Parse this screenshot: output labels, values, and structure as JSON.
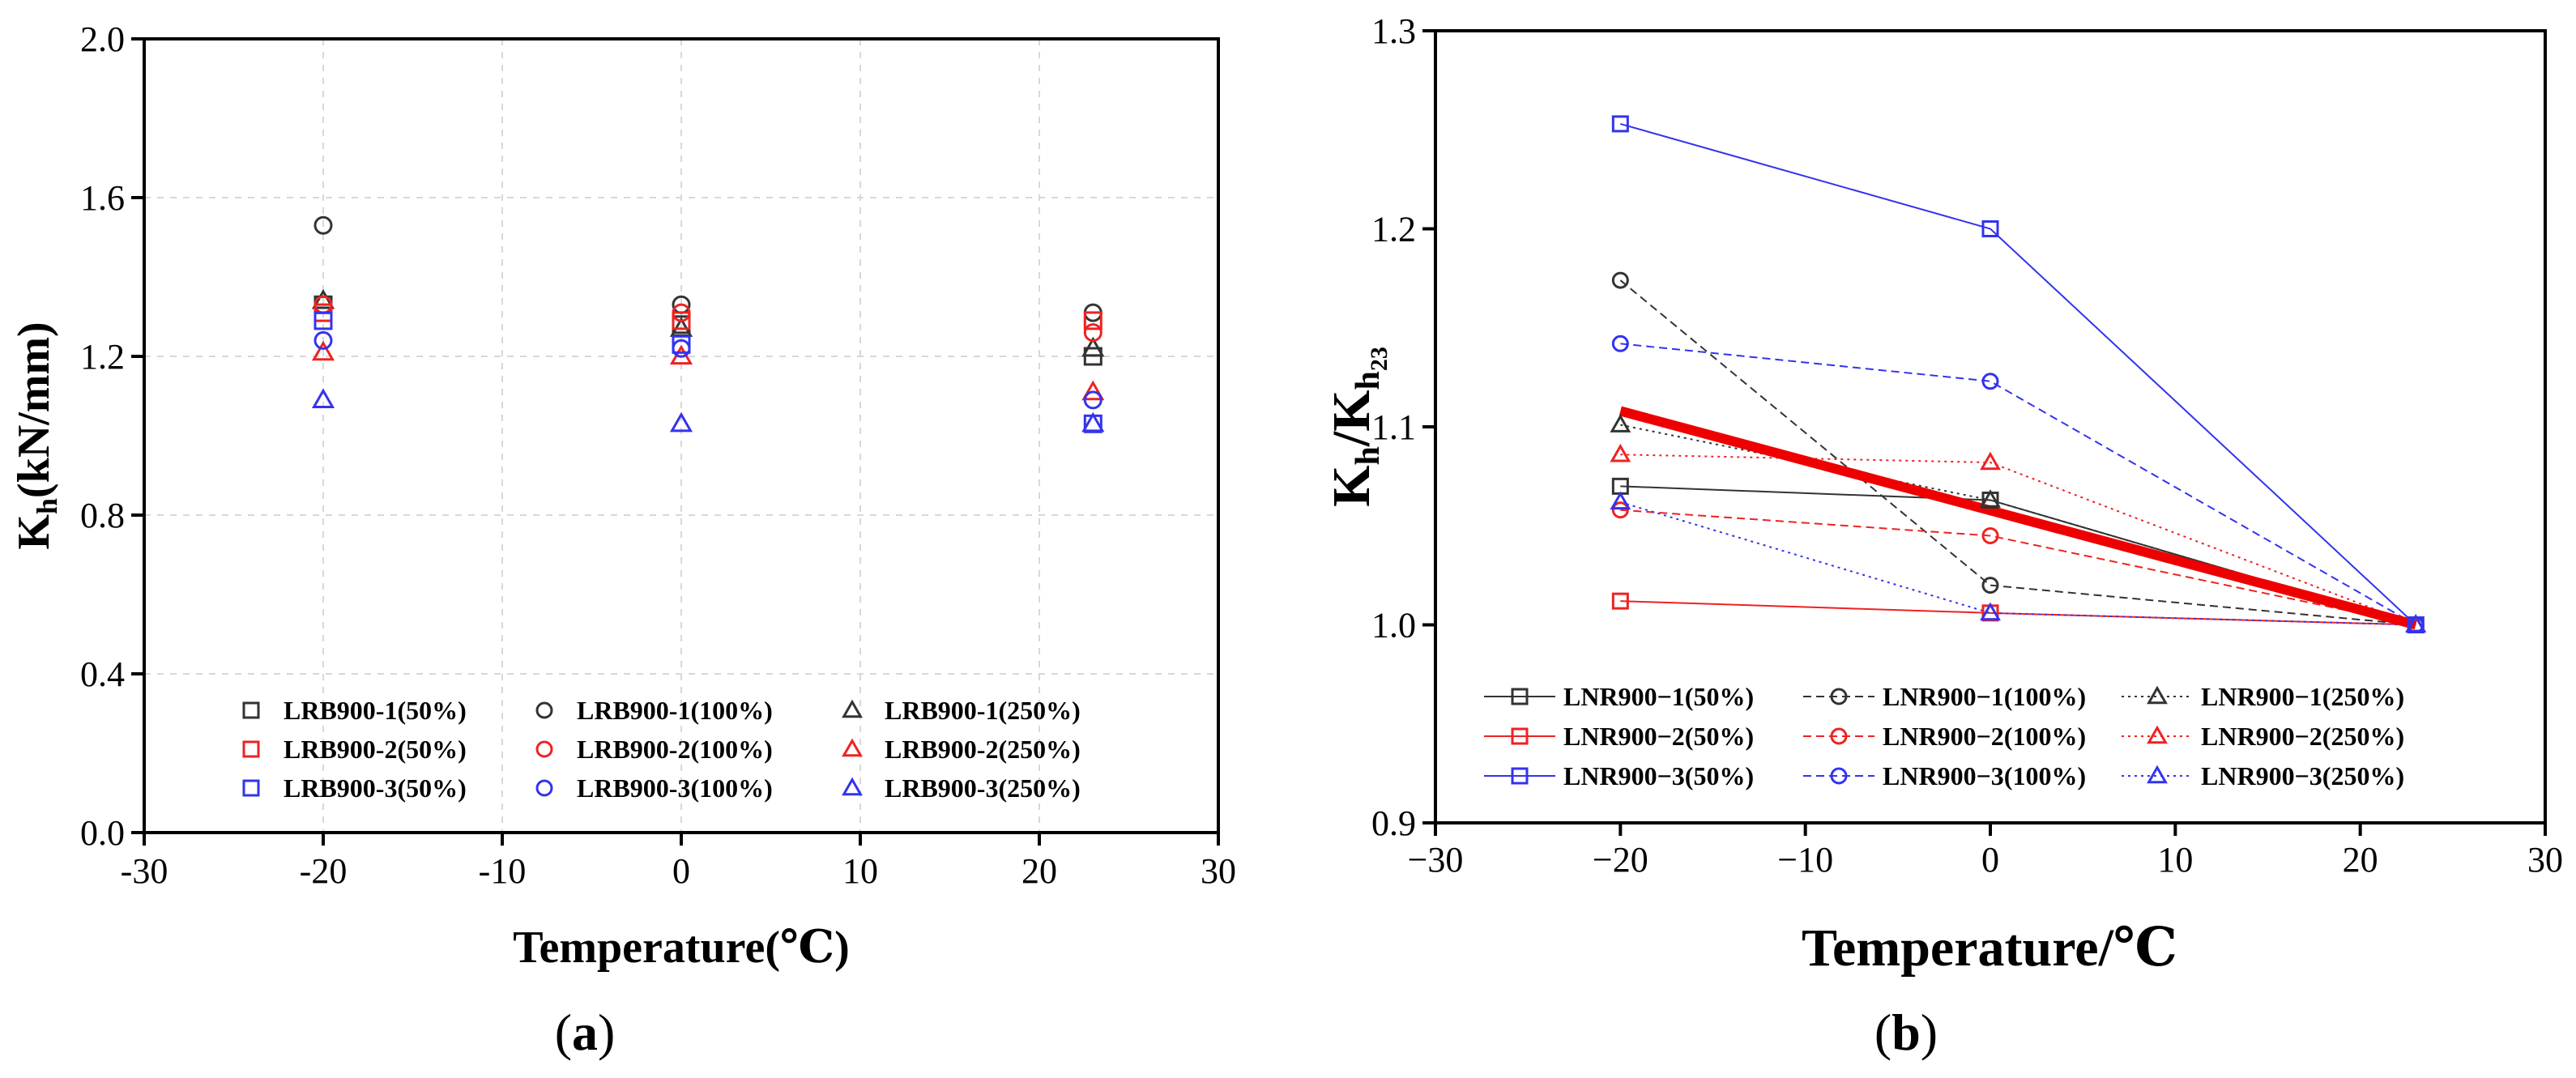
{
  "colors": {
    "black": "#333333",
    "red": "#ee2222",
    "blue": "#3333ee",
    "trend": "#ee0000",
    "grid": "#d8d8d8"
  },
  "panels": {
    "a": {
      "label_open": "(",
      "label_letter": "a",
      "label_close": ")"
    },
    "b": {
      "label_open": "(",
      "label_letter": "b",
      "label_close": ")"
    }
  },
  "chart_data": [
    {
      "type": "scatter",
      "id": "a",
      "xlabel": "Temperature(℃)",
      "ylabel_main": "K",
      "ylabel_sub": "h",
      "ylabel_rest": "(kN/mm)",
      "xlim": [
        -30,
        30
      ],
      "ylim": [
        0.0,
        2.0
      ],
      "xticks": [
        -30,
        -20,
        -10,
        0,
        10,
        20,
        30
      ],
      "xtick_labels": [
        "-30",
        "-20",
        "-10",
        "0",
        "10",
        "20",
        "30"
      ],
      "yticks": [
        0.0,
        0.4,
        0.8,
        1.2,
        1.6,
        2.0
      ],
      "ytick_labels": [
        "0.0",
        "0.4",
        "0.8",
        "1.2",
        "1.6",
        "2.0"
      ],
      "grid": true,
      "legend_position": "bottom-center",
      "series": [
        {
          "name": "LRB900-1(50%)",
          "color": "black",
          "marker": "square",
          "x": [
            -20,
            0,
            23
          ],
          "y": [
            1.33,
            1.28,
            1.2
          ]
        },
        {
          "name": "LRB900-1(100%)",
          "color": "black",
          "marker": "circle",
          "x": [
            -20,
            0,
            23
          ],
          "y": [
            1.53,
            1.33,
            1.31
          ]
        },
        {
          "name": "LRB900-1(250%)",
          "color": "black",
          "marker": "triangle",
          "x": [
            -20,
            0,
            23
          ],
          "y": [
            1.34,
            1.27,
            1.22
          ]
        },
        {
          "name": "LRB900-2(50%)",
          "color": "red",
          "marker": "square",
          "x": [
            -20,
            0,
            23
          ],
          "y": [
            1.31,
            1.29,
            1.29
          ]
        },
        {
          "name": "LRB900-2(100%)",
          "color": "red",
          "marker": "circle",
          "x": [
            -20,
            0,
            23
          ],
          "y": [
            1.33,
            1.31,
            1.26
          ]
        },
        {
          "name": "LRB900-2(250%)",
          "color": "red",
          "marker": "triangle",
          "x": [
            -20,
            0,
            23
          ],
          "y": [
            1.21,
            1.2,
            1.11
          ]
        },
        {
          "name": "LRB900-3(50%)",
          "color": "blue",
          "marker": "square",
          "x": [
            -20,
            0,
            23
          ],
          "y": [
            1.29,
            1.23,
            1.03
          ]
        },
        {
          "name": "LRB900-3(100%)",
          "color": "blue",
          "marker": "circle",
          "x": [
            -20,
            0,
            23
          ],
          "y": [
            1.24,
            1.22,
            1.09
          ]
        },
        {
          "name": "LRB900-3(250%)",
          "color": "blue",
          "marker": "triangle",
          "x": [
            -20,
            0,
            23
          ],
          "y": [
            1.09,
            1.03,
            1.03
          ]
        }
      ]
    },
    {
      "type": "line",
      "id": "b",
      "xlabel": "Temperature/℃",
      "ylabel_main": "K",
      "ylabel_sub": "h",
      "ylabel_mid": "/K",
      "ylabel_sub2": "h",
      "ylabel_sub3": "23",
      "xlim": [
        -30,
        30
      ],
      "ylim": [
        0.9,
        1.3
      ],
      "xticks": [
        -30,
        -20,
        -10,
        0,
        10,
        20,
        30
      ],
      "xtick_labels": [
        "−30",
        "−20",
        "−10",
        "0",
        "10",
        "20",
        "30"
      ],
      "yticks": [
        0.9,
        1.0,
        1.1,
        1.2,
        1.3
      ],
      "ytick_labels": [
        "0.9",
        "1.0",
        "1.1",
        "1.2",
        "1.3"
      ],
      "grid": false,
      "legend_position": "bottom-left",
      "series": [
        {
          "name": "LNR900−1(50%)",
          "color": "black",
          "marker": "square",
          "dash": "solid",
          "x": [
            -20,
            0,
            23
          ],
          "y": [
            1.07,
            1.063,
            1.0
          ]
        },
        {
          "name": "LNR900−1(100%)",
          "color": "black",
          "marker": "circle",
          "dash": "dashed",
          "x": [
            -20,
            0,
            23
          ],
          "y": [
            1.174,
            1.02,
            1.0
          ]
        },
        {
          "name": "LNR900−1(250%)",
          "color": "black",
          "marker": "triangle",
          "dash": "dotted",
          "x": [
            -20,
            0,
            23
          ],
          "y": [
            1.101,
            1.063,
            1.0
          ]
        },
        {
          "name": "LNR900−2(50%)",
          "color": "red",
          "marker": "square",
          "dash": "solid",
          "x": [
            -20,
            0,
            23
          ],
          "y": [
            1.012,
            1.006,
            1.0
          ]
        },
        {
          "name": "LNR900−2(100%)",
          "color": "red",
          "marker": "circle",
          "dash": "dashed",
          "x": [
            -20,
            0,
            23
          ],
          "y": [
            1.058,
            1.045,
            1.0
          ]
        },
        {
          "name": "LNR900−2(250%)",
          "color": "red",
          "marker": "triangle",
          "dash": "dotted",
          "x": [
            -20,
            0,
            23
          ],
          "y": [
            1.086,
            1.082,
            1.0
          ]
        },
        {
          "name": "LNR900−3(50%)",
          "color": "blue",
          "marker": "square",
          "dash": "solid",
          "x": [
            -20,
            0,
            23
          ],
          "y": [
            1.253,
            1.2,
            1.0
          ]
        },
        {
          "name": "LNR900−3(100%)",
          "color": "blue",
          "marker": "circle",
          "dash": "dashed",
          "x": [
            -20,
            0,
            23
          ],
          "y": [
            1.142,
            1.123,
            1.0
          ]
        },
        {
          "name": "LNR900−3(250%)",
          "color": "blue",
          "marker": "triangle",
          "dash": "dotted",
          "x": [
            -20,
            0,
            23
          ],
          "y": [
            1.062,
            1.006,
            1.0
          ]
        }
      ],
      "trend": {
        "color": "trend",
        "x": [
          -20,
          23
        ],
        "y": [
          1.108,
          1.0
        ]
      }
    }
  ]
}
